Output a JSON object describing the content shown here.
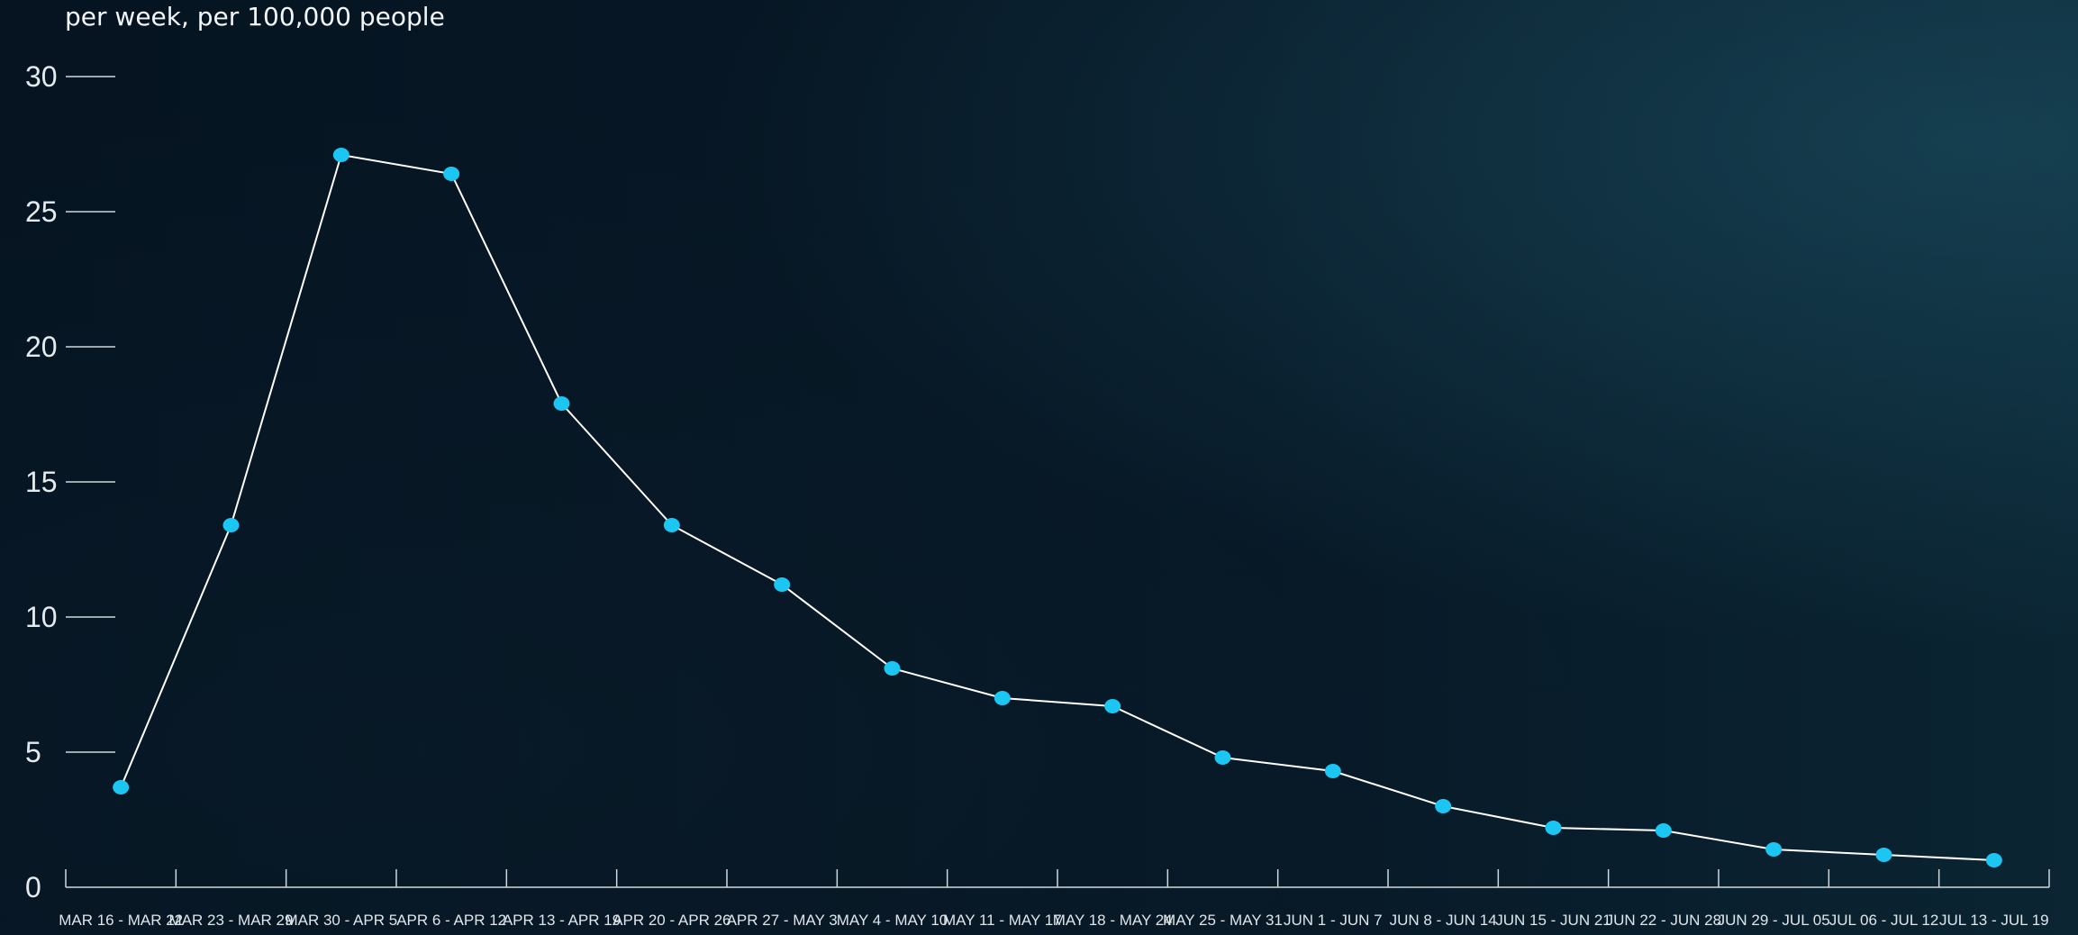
{
  "chart_data": {
    "type": "line",
    "subtitle": "per week, per 100,000 people",
    "y_ticks": [
      "0",
      "5",
      "10",
      "15",
      "20",
      "25",
      "30"
    ],
    "ylim": [
      0,
      30
    ],
    "categories": [
      "MAR 16 - MAR 22",
      "MAR 23 - MAR 29",
      "MAR 30 - APR 5",
      "APR 6 - APR 12",
      "APR 13 - APR 19",
      "APR 20 - APR 26",
      "APR 27 - MAY 3",
      "MAY 4 - MAY 10",
      "MAY 11 - MAY 17",
      "MAY 18 - MAY 24",
      "MAY 25 - MAY 31",
      "JUN 1 - JUN 7",
      "JUN 8 - JUN 14",
      "JUN 15 - JUN 21",
      "JUN 22 - JUN 28",
      "JUN 29 - JUL 05",
      "JUL 06 - JUL 12",
      "JUL 13 - JUL 19"
    ],
    "values": [
      3.7,
      13.4,
      27.1,
      26.4,
      17.9,
      13.4,
      11.2,
      8.1,
      7.0,
      6.7,
      4.8,
      4.3,
      3.0,
      2.2,
      2.1,
      1.4,
      1.2,
      1.0
    ],
    "grid": false,
    "colors": {
      "line": "#ffffff",
      "point": "#1cc6f2",
      "axis": "#cfd8dd"
    }
  }
}
